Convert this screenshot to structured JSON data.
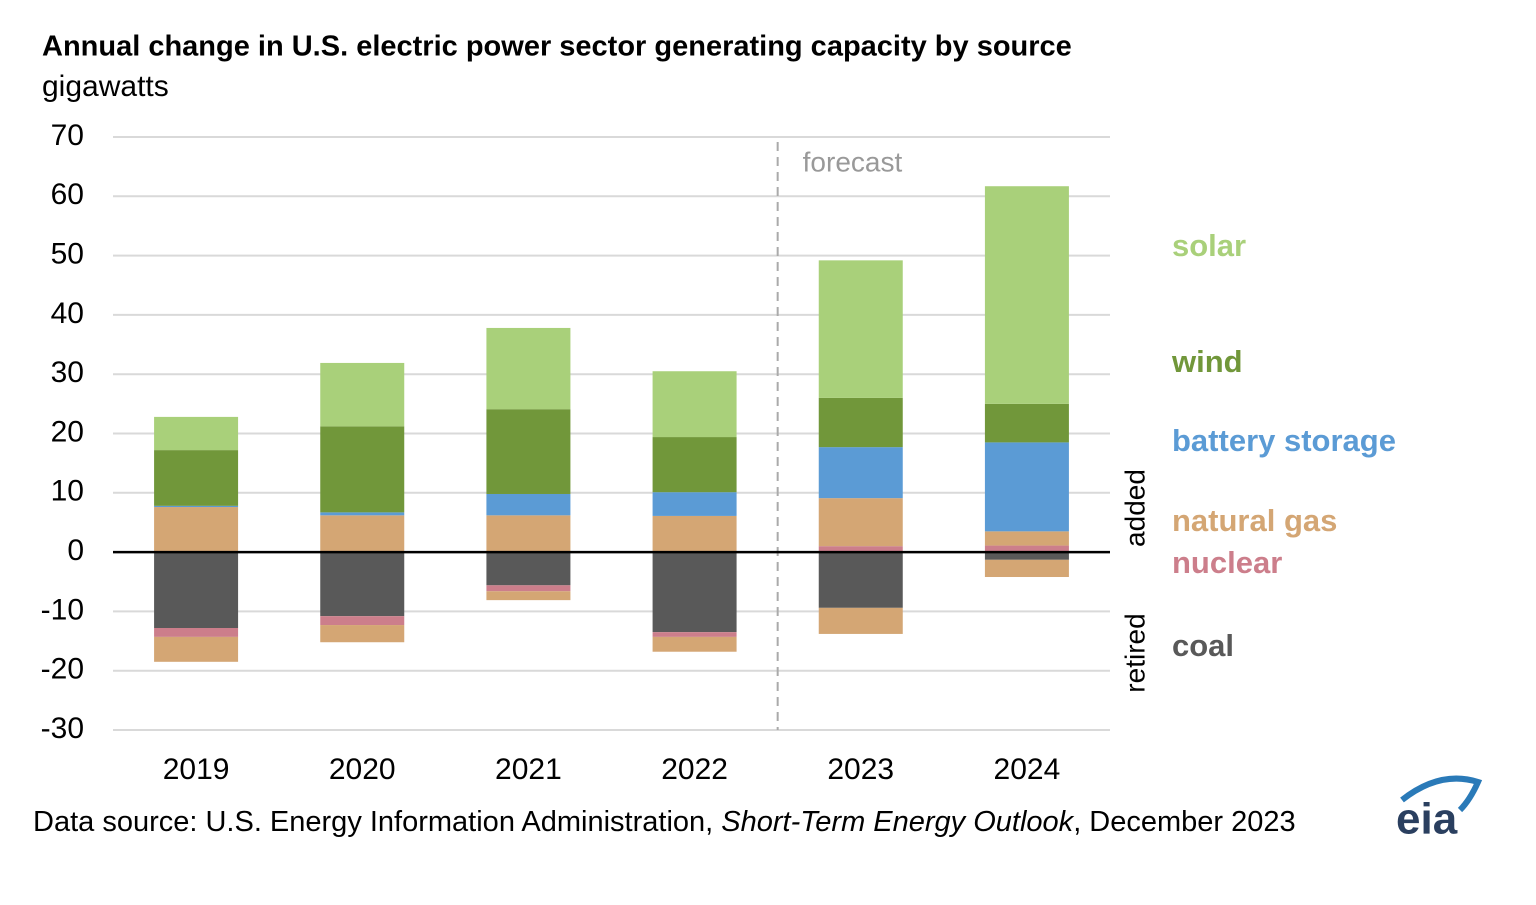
{
  "chart_data": {
    "type": "stacked-bar",
    "title": "Annual change in U.S. electric power sector generating capacity by source",
    "subtitle": "gigawatts",
    "categories": [
      "2019",
      "2020",
      "2021",
      "2022",
      "2023",
      "2024"
    ],
    "series": [
      {
        "name": "solar",
        "color": "#a9d07a",
        "added": [
          5.6,
          10.7,
          13.7,
          11.1,
          23.2,
          36.7
        ]
      },
      {
        "name": "wind",
        "color": "#71973a",
        "added": [
          9.4,
          14.5,
          14.3,
          9.3,
          8.3,
          6.5
        ]
      },
      {
        "name": "battery storage",
        "color": "#5b9bd5",
        "added": [
          0.2,
          0.5,
          3.6,
          4.0,
          8.6,
          15.0
        ]
      },
      {
        "name": "natural gas",
        "color": "#d4a674",
        "added": [
          7.6,
          6.2,
          6.2,
          6.1,
          8.1,
          2.4
        ],
        "retired": [
          -4.2,
          -2.9,
          -1.5,
          -2.5,
          -4.4,
          -2.9
        ]
      },
      {
        "name": "nuclear",
        "color": "#cc7e8b",
        "added": [
          0,
          0,
          0,
          0,
          1.0,
          1.1
        ],
        "retired": [
          -1.5,
          -1.5,
          -1.0,
          -0.8,
          0,
          0
        ]
      },
      {
        "name": "coal",
        "color": "#595959",
        "retired": [
          -12.8,
          -10.8,
          -5.6,
          -13.5,
          -9.4,
          -1.3
        ]
      }
    ],
    "ylim": [
      -30,
      70
    ],
    "yticks": [
      -30,
      -20,
      -10,
      0,
      10,
      20,
      30,
      40,
      50,
      60,
      70
    ],
    "grid": true,
    "forecast_label": "forecast",
    "added_label": "added",
    "retired_label": "retired",
    "source": {
      "prefix": "Data source: U.S. Energy Information Administration, ",
      "title": "Short-Term Energy Outlook",
      "suffix": ", December 2023"
    },
    "logo": "eia"
  }
}
